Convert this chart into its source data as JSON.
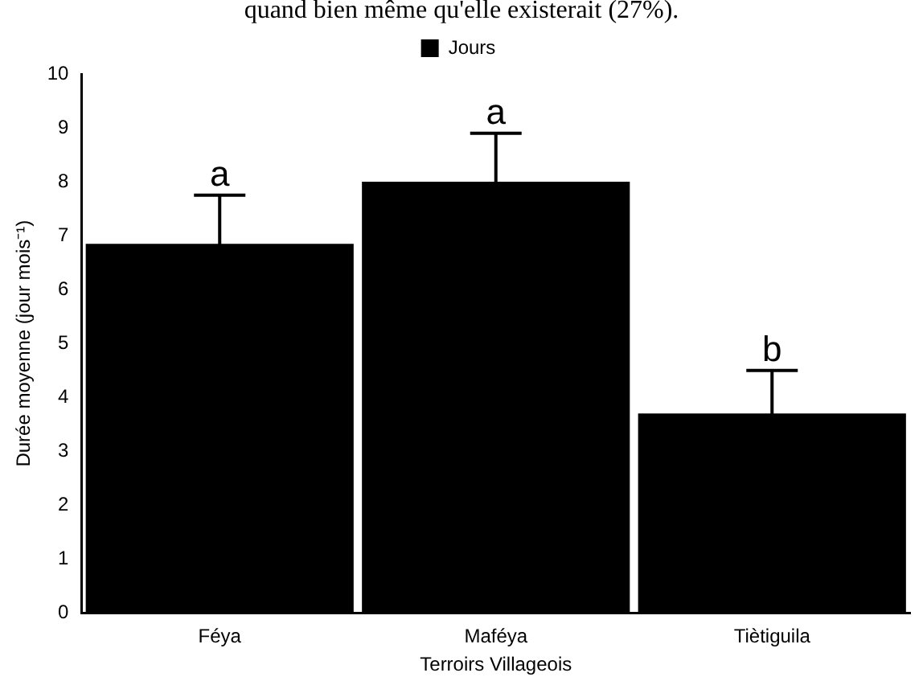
{
  "chart_data": {
    "type": "bar",
    "categories": [
      "Féya",
      "Maféya",
      "Tiètiguila"
    ],
    "series": [
      {
        "name": "Jours",
        "color": "#000000",
        "values": [
          6.85,
          8.0,
          3.7
        ],
        "errors": [
          0.9,
          0.9,
          0.8
        ]
      }
    ],
    "xlabel": "Terroirs Villageois",
    "ylabel": "Durée moyenne (jour mois⁻¹)",
    "ylim": [
      0,
      10
    ],
    "yticks": [
      0,
      1,
      2,
      3,
      4,
      5,
      6,
      7,
      8,
      9,
      10
    ],
    "grid": false,
    "legend": "top",
    "annotations": [
      "quand bien même qu'elle existerait (27%).",
      {
        "text": "a",
        "x": "Féya",
        "y": 7.75
      },
      {
        "text": "a",
        "x": "Maféya",
        "y": 8.9
      },
      {
        "text": "b",
        "x": "Tiètiguila",
        "y": 4.5
      }
    ]
  }
}
